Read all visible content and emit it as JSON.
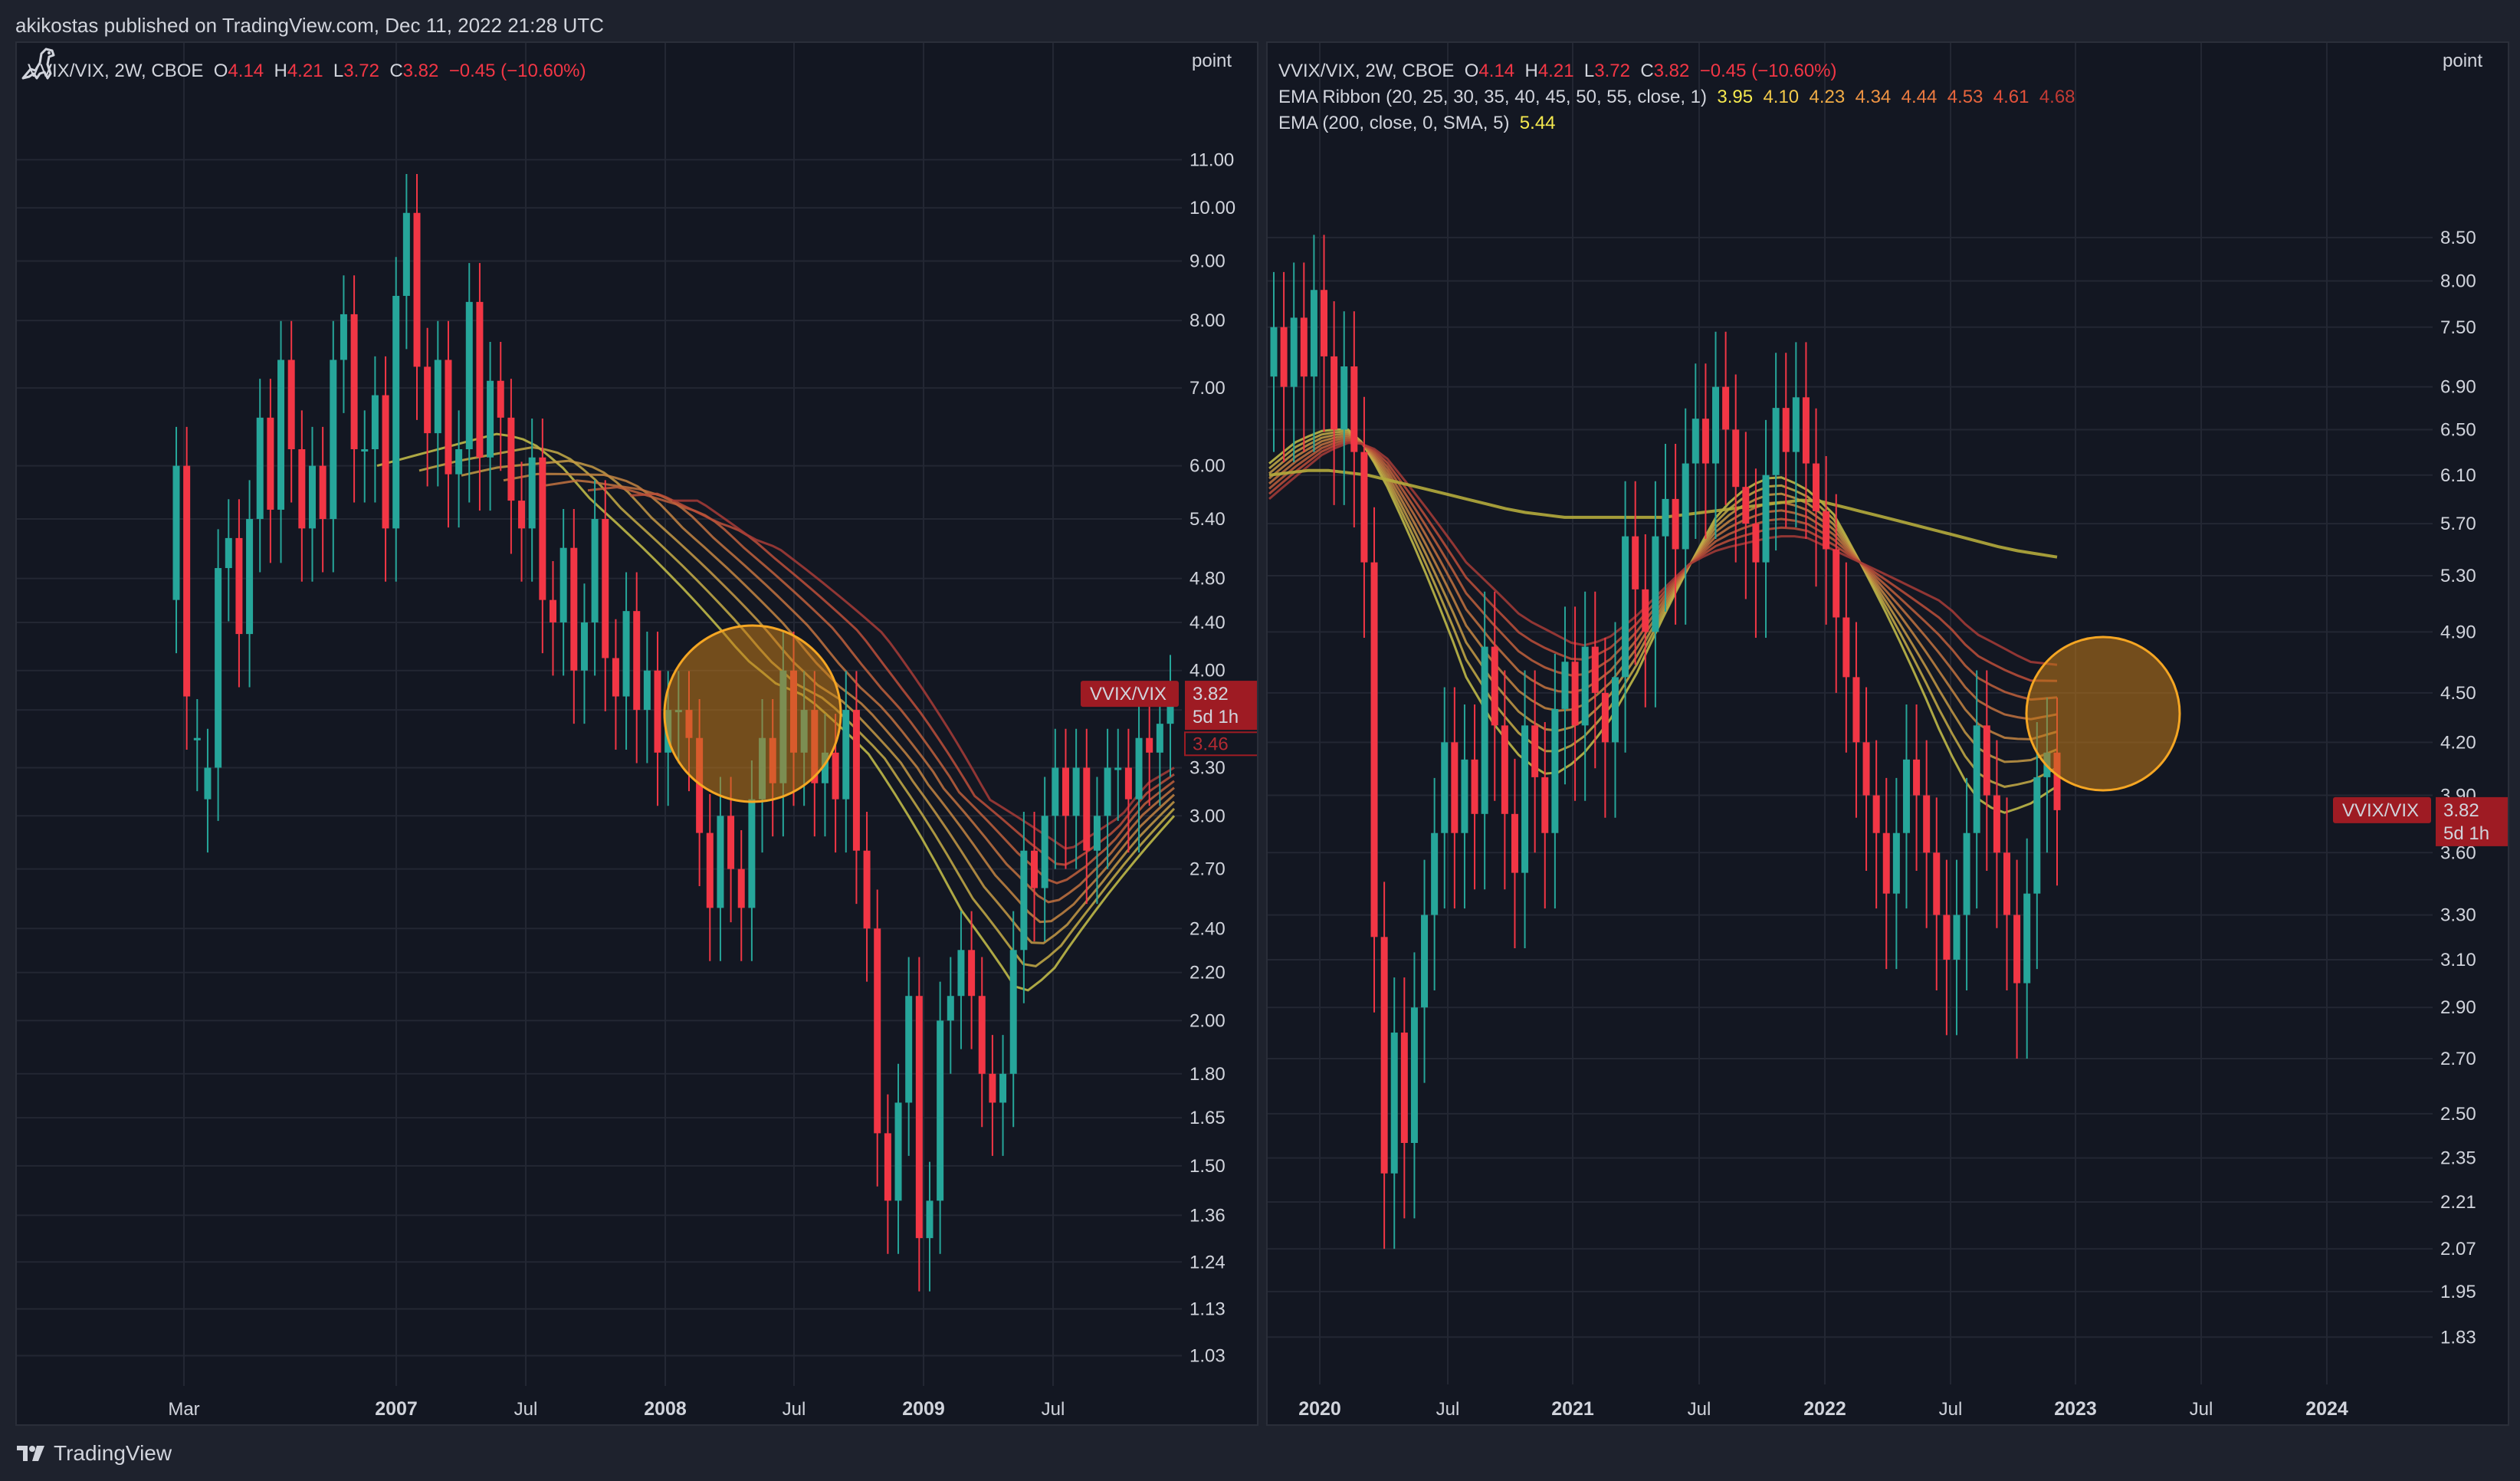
{
  "publisher": "akikostas published on TradingView.com, Dec 11, 2022 21:28 UTC",
  "brand": "TradingView",
  "colors": {
    "background": "#131722",
    "frame": "#1e222d",
    "grid": "#232733",
    "up": "#26a69a",
    "down": "#f23645",
    "tag": "#9e1b23",
    "circle_fill": "#c27a17",
    "circle_stroke": "#f5a623"
  },
  "icons": {
    "brand": "tradingview-logo-icon",
    "corner": "dinosaur-icon"
  },
  "chart_data": [
    {
      "type": "candlestick",
      "symbol": "VVIX/VIX, 2W, CBOE",
      "legend": {
        "ohlc": {
          "O": "4.14",
          "H": "4.21",
          "L": "3.72",
          "C": "3.82",
          "change": "−0.45 (−10.60%)"
        }
      },
      "y_unit": "point",
      "y_scale": "log",
      "ylim": [
        1.0,
        12.0
      ],
      "y_ticks": [
        "11.00",
        "10.00",
        "9.00",
        "8.00",
        "7.00",
        "6.00",
        "5.40",
        "4.80",
        "4.40",
        "4.00",
        "3.70",
        "3.30",
        "3.00",
        "2.70",
        "2.40",
        "2.20",
        "2.00",
        "1.80",
        "1.65",
        "1.50",
        "1.36",
        "1.24",
        "1.13",
        "1.03"
      ],
      "x_ticks": [
        {
          "label": "Mar",
          "bold": false
        },
        {
          "label": "2007",
          "bold": true
        },
        {
          "label": "Jul",
          "bold": false
        },
        {
          "label": "2008",
          "bold": true
        },
        {
          "label": "Jul",
          "bold": false
        },
        {
          "label": "2009",
          "bold": true
        },
        {
          "label": "Jul",
          "bold": false
        }
      ],
      "price_tag": {
        "name": "VVIX/VIX",
        "value": "3.82",
        "countdown": "5d 1h",
        "prev": "3.46"
      },
      "series": {
        "candles": [
          [
            4.6,
            6.0
          ],
          [
            6.0,
            3.8
          ],
          [
            3.5,
            3.5
          ],
          [
            3.1,
            3.3
          ],
          [
            3.3,
            4.9
          ],
          [
            4.9,
            5.2
          ],
          [
            5.2,
            4.3
          ],
          [
            4.3,
            5.4
          ],
          [
            5.4,
            6.6
          ],
          [
            6.6,
            5.5
          ],
          [
            5.5,
            7.4
          ],
          [
            7.4,
            6.2
          ],
          [
            6.2,
            5.3
          ],
          [
            5.3,
            6.0
          ],
          [
            6.0,
            5.4
          ],
          [
            5.4,
            7.4
          ],
          [
            7.4,
            8.1
          ],
          [
            8.1,
            6.2
          ],
          [
            6.2,
            6.2
          ],
          [
            6.2,
            6.9
          ],
          [
            6.9,
            5.3
          ],
          [
            5.3,
            8.4
          ],
          [
            8.4,
            9.9
          ],
          [
            9.9,
            7.3
          ],
          [
            7.3,
            6.4
          ],
          [
            6.4,
            7.4
          ],
          [
            7.4,
            5.9
          ],
          [
            5.9,
            6.2
          ],
          [
            6.2,
            8.3
          ],
          [
            8.3,
            6.1
          ],
          [
            6.1,
            7.1
          ],
          [
            7.1,
            6.6
          ],
          [
            6.6,
            5.6
          ],
          [
            5.6,
            5.3
          ],
          [
            5.3,
            6.1
          ],
          [
            6.1,
            4.6
          ],
          [
            4.6,
            4.4
          ],
          [
            4.4,
            5.1
          ],
          [
            5.1,
            4.0
          ],
          [
            4.0,
            4.4
          ],
          [
            4.4,
            5.4
          ],
          [
            5.4,
            4.1
          ],
          [
            4.1,
            3.8
          ],
          [
            3.8,
            4.5
          ],
          [
            4.5,
            3.7
          ],
          [
            3.7,
            4.0
          ],
          [
            4.0,
            3.4
          ],
          [
            3.4,
            3.7
          ],
          [
            3.7,
            3.7
          ],
          [
            3.7,
            3.5
          ],
          [
            3.5,
            2.9
          ],
          [
            2.9,
            2.5
          ],
          [
            2.5,
            3.0
          ],
          [
            3.0,
            2.7
          ],
          [
            2.7,
            2.5
          ],
          [
            2.5,
            3.1
          ],
          [
            3.1,
            3.5
          ],
          [
            3.5,
            3.2
          ],
          [
            3.2,
            4.0
          ],
          [
            4.0,
            3.4
          ],
          [
            3.4,
            3.7
          ],
          [
            3.7,
            3.2
          ],
          [
            3.2,
            3.4
          ],
          [
            3.4,
            3.1
          ],
          [
            3.1,
            3.7
          ],
          [
            3.7,
            2.8
          ],
          [
            2.8,
            2.4
          ],
          [
            2.4,
            1.6
          ],
          [
            1.6,
            1.4
          ],
          [
            1.4,
            1.7
          ],
          [
            1.7,
            2.1
          ],
          [
            2.1,
            1.3
          ],
          [
            1.3,
            1.4
          ],
          [
            1.4,
            2.0
          ],
          [
            2.0,
            2.1
          ],
          [
            2.1,
            2.3
          ],
          [
            2.3,
            2.1
          ],
          [
            2.1,
            1.8
          ],
          [
            1.8,
            1.7
          ],
          [
            1.7,
            1.8
          ],
          [
            1.8,
            2.3
          ],
          [
            2.3,
            2.8
          ],
          [
            2.8,
            2.6
          ],
          [
            2.6,
            3.0
          ],
          [
            3.0,
            3.3
          ],
          [
            3.3,
            3.0
          ],
          [
            3.0,
            3.3
          ],
          [
            3.3,
            2.8
          ],
          [
            2.8,
            3.0
          ],
          [
            3.0,
            3.3
          ],
          [
            3.3,
            3.3
          ],
          [
            3.3,
            3.1
          ],
          [
            3.1,
            3.5
          ],
          [
            3.5,
            3.4
          ],
          [
            3.4,
            3.6
          ],
          [
            3.6,
            3.82
          ]
        ],
        "ema_first": [
          6.0,
          6.1,
          6.2,
          6.3,
          6.4,
          6.3,
          6.0,
          5.6,
          5.3,
          5.0,
          4.7,
          4.4,
          4.1,
          3.9,
          3.8,
          3.6,
          3.4,
          3.1,
          2.8,
          2.5,
          2.3,
          2.1,
          2.2,
          2.4,
          2.6,
          2.8,
          3.0
        ],
        "ema_last": [
          5.6,
          5.6,
          5.4,
          5.2,
          5.1,
          4.9,
          4.7,
          4.5,
          4.3,
          4.0,
          3.7,
          3.4,
          3.1,
          3.0,
          2.9,
          2.8,
          2.9,
          3.0,
          3.2,
          3.3
        ],
        "ema_long": [
          5.9,
          3.46
        ]
      },
      "annotations": [
        {
          "type": "circle",
          "label": ""
        }
      ]
    },
    {
      "type": "candlestick",
      "symbol": "VVIX/VIX, 2W, CBOE",
      "legend": {
        "ohlc": {
          "O": "4.14",
          "H": "4.21",
          "L": "3.72",
          "C": "3.82",
          "change": "−0.45 (−10.60%)"
        },
        "ribbon_label": "EMA Ribbon (20, 25, 30, 35, 40, 45, 50, 55, close, 1)",
        "ribbon_values": [
          "3.95",
          "4.10",
          "4.23",
          "4.34",
          "4.44",
          "4.53",
          "4.61",
          "4.68"
        ],
        "ema_label": "EMA (200, close, 0, SMA, 5)",
        "ema_value": "5.44"
      },
      "y_unit": "point",
      "y_scale": "log",
      "ylim": [
        1.75,
        9.5
      ],
      "y_ticks": [
        "8.50",
        "8.00",
        "7.50",
        "6.90",
        "6.50",
        "6.10",
        "5.70",
        "5.30",
        "4.90",
        "4.50",
        "4.20",
        "3.90",
        "3.60",
        "3.30",
        "3.10",
        "2.90",
        "2.70",
        "2.50",
        "2.35",
        "2.21",
        "2.07",
        "1.95",
        "1.83"
      ],
      "x_ticks": [
        {
          "label": "2020",
          "bold": true
        },
        {
          "label": "Jul",
          "bold": false
        },
        {
          "label": "2021",
          "bold": true
        },
        {
          "label": "Jul",
          "bold": false
        },
        {
          "label": "2022",
          "bold": true
        },
        {
          "label": "Jul",
          "bold": false
        },
        {
          "label": "2023",
          "bold": true
        },
        {
          "label": "Jul",
          "bold": false
        },
        {
          "label": "2024",
          "bold": true
        }
      ],
      "price_tag": {
        "name": "VVIX/VIX",
        "value": "3.82",
        "countdown": "5d 1h"
      },
      "series": {
        "candles": [
          [
            7.0,
            7.5
          ],
          [
            7.5,
            6.9
          ],
          [
            6.9,
            7.6
          ],
          [
            7.6,
            7.0
          ],
          [
            7.0,
            7.9
          ],
          [
            7.9,
            7.2
          ],
          [
            7.2,
            6.5
          ],
          [
            6.5,
            7.1
          ],
          [
            7.1,
            6.3
          ],
          [
            6.3,
            5.4
          ],
          [
            5.4,
            3.2
          ],
          [
            3.2,
            2.3
          ],
          [
            2.3,
            2.8
          ],
          [
            2.8,
            2.4
          ],
          [
            2.4,
            2.9
          ],
          [
            2.9,
            3.3
          ],
          [
            3.3,
            3.7
          ],
          [
            3.7,
            4.2
          ],
          [
            4.2,
            3.7
          ],
          [
            3.7,
            4.1
          ],
          [
            4.1,
            3.8
          ],
          [
            3.8,
            4.8
          ],
          [
            4.8,
            4.3
          ],
          [
            4.3,
            3.8
          ],
          [
            3.8,
            3.5
          ],
          [
            3.5,
            4.3
          ],
          [
            4.3,
            4.0
          ],
          [
            4.0,
            3.7
          ],
          [
            3.7,
            4.4
          ],
          [
            4.4,
            4.7
          ],
          [
            4.7,
            4.3
          ],
          [
            4.3,
            4.8
          ],
          [
            4.8,
            4.5
          ],
          [
            4.5,
            4.2
          ],
          [
            4.2,
            4.6
          ],
          [
            4.6,
            5.6
          ],
          [
            5.6,
            5.2
          ],
          [
            5.2,
            4.9
          ],
          [
            4.9,
            5.6
          ],
          [
            5.6,
            5.9
          ],
          [
            5.9,
            5.5
          ],
          [
            5.5,
            6.2
          ],
          [
            6.2,
            6.6
          ],
          [
            6.6,
            6.2
          ],
          [
            6.2,
            6.9
          ],
          [
            6.9,
            6.5
          ],
          [
            6.5,
            6.0
          ],
          [
            6.0,
            5.7
          ],
          [
            5.7,
            5.4
          ],
          [
            5.4,
            6.1
          ],
          [
            6.1,
            6.7
          ],
          [
            6.7,
            6.3
          ],
          [
            6.3,
            6.8
          ],
          [
            6.8,
            6.2
          ],
          [
            6.2,
            5.8
          ],
          [
            5.8,
            5.5
          ],
          [
            5.5,
            5.0
          ],
          [
            5.0,
            4.6
          ],
          [
            4.6,
            4.2
          ],
          [
            4.2,
            3.9
          ],
          [
            3.9,
            3.7
          ],
          [
            3.7,
            3.4
          ],
          [
            3.4,
            3.7
          ],
          [
            3.7,
            4.1
          ],
          [
            4.1,
            3.9
          ],
          [
            3.9,
            3.6
          ],
          [
            3.6,
            3.3
          ],
          [
            3.3,
            3.1
          ],
          [
            3.1,
            3.3
          ],
          [
            3.3,
            3.7
          ],
          [
            3.7,
            4.3
          ],
          [
            4.3,
            3.9
          ],
          [
            3.9,
            3.6
          ],
          [
            3.6,
            3.3
          ],
          [
            3.3,
            3.0
          ],
          [
            3.0,
            3.4
          ],
          [
            3.4,
            4.0
          ],
          [
            4.0,
            4.14
          ],
          [
            4.14,
            3.82
          ]
        ],
        "ema_first": [
          6.2,
          6.4,
          6.5,
          6.5,
          6.1,
          5.6,
          5.1,
          4.6,
          4.3,
          4.1,
          4.0,
          4.1,
          4.3,
          4.6,
          5.0,
          5.4,
          5.8,
          6.0,
          6.1,
          6.0,
          5.8,
          5.4,
          5.0,
          4.6,
          4.2,
          3.9,
          3.8,
          3.85,
          3.95
        ],
        "ema_last": [
          5.9,
          6.1,
          6.3,
          6.4,
          6.3,
          6.0,
          5.7,
          5.4,
          5.2,
          5.0,
          4.9,
          4.8,
          4.85,
          5.0,
          5.2,
          5.4,
          5.5,
          5.55,
          5.6,
          5.6,
          5.5,
          5.4,
          5.3,
          5.2,
          5.1,
          4.9,
          4.8,
          4.7,
          4.68
        ],
        "ema_long": [
          6.1,
          6.15,
          6.1,
          6.0,
          5.9,
          5.8,
          5.75,
          5.75,
          5.75,
          5.8,
          5.85,
          5.9,
          5.8,
          5.7,
          5.6,
          5.5,
          5.44
        ]
      },
      "annotations": [
        {
          "type": "circle",
          "label": ""
        }
      ]
    }
  ]
}
